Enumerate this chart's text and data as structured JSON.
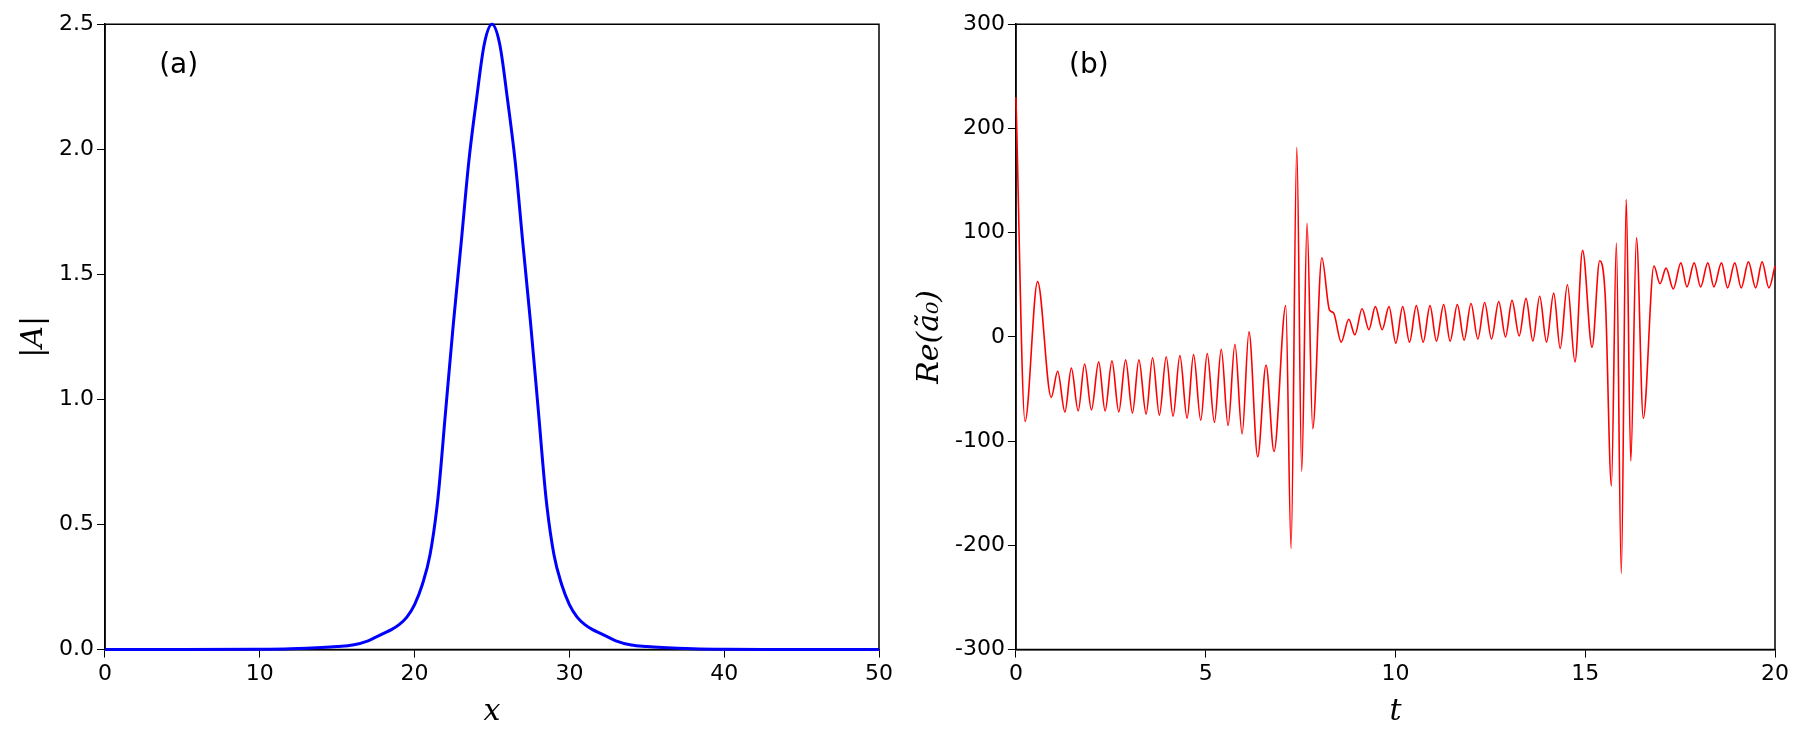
{
  "chart_data": [
    {
      "type": "line",
      "xlabel": "x",
      "ylabel": "|A|",
      "annotations": [
        "(a)"
      ],
      "grid": false,
      "legend": false,
      "xlim": [
        0,
        50
      ],
      "xticks": [
        0,
        10,
        20,
        30,
        40,
        50
      ],
      "ylim": [
        0,
        2.5
      ],
      "yticks": [
        {
          "value": 0,
          "label": "0.0"
        },
        {
          "value": 0.5,
          "label": "0.5"
        },
        {
          "value": 1,
          "label": "1.0"
        },
        {
          "value": 1.5,
          "label": "1.5"
        },
        {
          "value": 2,
          "label": "2.0"
        },
        {
          "value": 2.5,
          "label": "2.5"
        }
      ],
      "series": [
        {
          "color": "#0000ff",
          "x": [
            0,
            5,
            10,
            12,
            14,
            15,
            16,
            17,
            17.5,
            18,
            18.5,
            19,
            19.5,
            20,
            20.5,
            21,
            21.5,
            22,
            22.5,
            23,
            23.5,
            24,
            24.5,
            25,
            25.5,
            26,
            26.5,
            27,
            27.5,
            28,
            28.5,
            29,
            29.5,
            30,
            30.5,
            31,
            31.5,
            32,
            32.5,
            33,
            34,
            35,
            36,
            38,
            40,
            45,
            50
          ],
          "values": [
            0,
            0,
            0.001,
            0.003,
            0.008,
            0.012,
            0.018,
            0.035,
            0.05,
            0.065,
            0.08,
            0.1,
            0.13,
            0.18,
            0.26,
            0.38,
            0.6,
            0.95,
            1.3,
            1.62,
            1.95,
            2.2,
            2.42,
            2.5,
            2.42,
            2.2,
            1.95,
            1.62,
            1.3,
            0.95,
            0.6,
            0.38,
            0.26,
            0.18,
            0.13,
            0.1,
            0.08,
            0.065,
            0.05,
            0.035,
            0.018,
            0.012,
            0.008,
            0.003,
            0.001,
            0,
            0
          ]
        }
      ]
    },
    {
      "type": "line",
      "xlabel": "t",
      "ylabel": "Re(ã₀)",
      "annotations": [
        "(b)"
      ],
      "grid": false,
      "legend": false,
      "xlim": [
        0,
        20
      ],
      "xticks": [
        0,
        5,
        10,
        15,
        20
      ],
      "ylim": [
        -300,
        300
      ],
      "yticks": [
        -300,
        -200,
        -100,
        0,
        100,
        200,
        300
      ],
      "series": [
        {
          "color": "#ff0000",
          "x": [
            0,
            0.24,
            0.57,
            0.93,
            1.1,
            1.29,
            1.46,
            1.64,
            1.81,
            1.99,
            2.18,
            2.35,
            2.53,
            2.71,
            2.89,
            3.07,
            3.24,
            3.43,
            3.6,
            3.78,
            3.96,
            4.14,
            4.32,
            4.51,
            4.68,
            4.87,
            5.04,
            5.23,
            5.41,
            5.59,
            5.77,
            5.96,
            6.14,
            6.37,
            6.59,
            6.8,
            7.11,
            7.25,
            7.4,
            7.53,
            7.67,
            7.82,
            8.06,
            8.26,
            8.37,
            8.57,
            8.77,
            8.93,
            9.12,
            9.3,
            9.47,
            9.65,
            9.83,
            10.01,
            10.19,
            10.37,
            10.55,
            10.73,
            10.91,
            11.08,
            11.27,
            11.44,
            11.63,
            11.81,
            11.99,
            12.17,
            12.35,
            12.53,
            12.72,
            12.9,
            13.07,
            13.26,
            13.44,
            13.62,
            13.8,
            13.98,
            14.17,
            14.34,
            14.53,
            14.73,
            14.93,
            15.18,
            15.38,
            15.53,
            15.69,
            15.82,
            15.95,
            16.08,
            16.2,
            16.35,
            16.53,
            16.81,
            16.97,
            17.13,
            17.32,
            17.52,
            17.68,
            17.87,
            18.04,
            18.23,
            18.39,
            18.59,
            18.75,
            18.94,
            19.11,
            19.3,
            19.49,
            19.66,
            19.84,
            20
          ],
          "values": [
            230,
            -81,
            53,
            -58,
            -33,
            -72,
            -30,
            -71,
            -26,
            -70,
            -24,
            -71,
            -23,
            -72,
            -22,
            -73,
            -22,
            -74,
            -20,
            -75,
            -19,
            -76,
            -18,
            -78,
            -17,
            -80,
            -16,
            -82,
            -12,
            -85,
            -7,
            -93,
            5,
            -115,
            -27,
            -110,
            30,
            -203,
            182,
            -129,
            109,
            -88,
            76,
            26,
            23,
            -5,
            17,
            2,
            27,
            7,
            29,
            7,
            29,
            -6,
            29,
            -5,
            30,
            -5,
            30,
            -4,
            31,
            -4,
            31,
            -3,
            32,
            -2,
            33,
            -2,
            34,
            0,
            35,
            1,
            37,
            -4,
            39,
            -5,
            42,
            -11,
            50,
            -24,
            83,
            -10,
            73,
            37,
            -143,
            90,
            -227,
            132,
            -119,
            95,
            -78,
            68,
            51,
            66,
            46,
            71,
            48,
            71,
            48,
            71,
            48,
            71,
            47,
            71,
            47,
            72,
            47,
            72,
            47,
            68
          ]
        }
      ]
    }
  ]
}
